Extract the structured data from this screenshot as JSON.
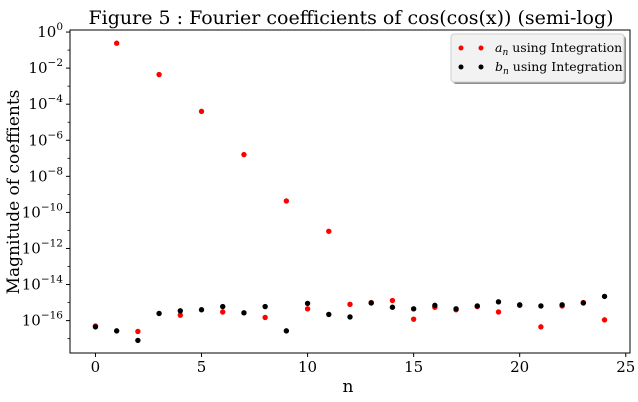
{
  "chart_data": {
    "type": "scatter",
    "title": "Figure 5 : Fourier coefficients of cos(cos(x)) (semi-log)",
    "xlabel": "n",
    "ylabel": "Magnitude of coeffients",
    "xlim": [
      -1.2,
      25.2
    ],
    "ylim": [
      1.6e-18,
      1.3
    ],
    "yscale": "log",
    "xticks": [
      0,
      5,
      10,
      15,
      20,
      25
    ],
    "yticks": [
      {
        "value": 1.0,
        "label": "10^0",
        "base": "10",
        "exp": "0"
      },
      {
        "value": 0.01,
        "label": "10^-2",
        "base": "10",
        "exp": "−2"
      },
      {
        "value": 0.0001,
        "label": "10^-4",
        "base": "10",
        "exp": "−4"
      },
      {
        "value": 1e-06,
        "label": "10^-6",
        "base": "10",
        "exp": "−6"
      },
      {
        "value": 1e-08,
        "label": "10^-8",
        "base": "10",
        "exp": "−8"
      },
      {
        "value": 1e-10,
        "label": "10^-10",
        "base": "10",
        "exp": "−10"
      },
      {
        "value": 1e-12,
        "label": "10^-12",
        "base": "10",
        "exp": "−12"
      },
      {
        "value": 1e-14,
        "label": "10^-14",
        "base": "10",
        "exp": "−14"
      },
      {
        "value": 1e-16,
        "label": "10^-16",
        "base": "10",
        "exp": "−16"
      }
    ],
    "grid": false,
    "legend_position": "top-right",
    "series": [
      {
        "name": "a_n using Integration",
        "legend_sym": "a",
        "legend_sub": "n",
        "legend_rest": " using Integration",
        "color": "#ff0000",
        "x": [
          0,
          1,
          2,
          3,
          4,
          5,
          6,
          7,
          8,
          9,
          10,
          11,
          12,
          13,
          14,
          15,
          16,
          17,
          18,
          19,
          20,
          21,
          22,
          23,
          24
        ],
        "y": [
          5e-17,
          0.24,
          2.5e-17,
          0.0044,
          2e-16,
          4e-05,
          3e-16,
          1.6e-07,
          1.5e-16,
          4.3e-10,
          4.5e-16,
          9e-12,
          8e-16,
          1e-15,
          1.3e-15,
          1.2e-16,
          5.5e-16,
          4e-16,
          6e-16,
          3e-16,
          7e-16,
          4.5e-17,
          6.5e-16,
          1e-15,
          1.1e-16
        ]
      },
      {
        "name": "b_n using Integration",
        "legend_sym": "b",
        "legend_sub": "n",
        "legend_rest": " using Integration",
        "color": "#000000",
        "x": [
          0,
          1,
          2,
          3,
          4,
          5,
          6,
          7,
          8,
          9,
          10,
          11,
          12,
          13,
          14,
          15,
          16,
          17,
          18,
          19,
          20,
          21,
          22,
          23,
          24
        ],
        "y": [
          4.5e-17,
          2.7e-17,
          8e-18,
          2.5e-16,
          3.5e-16,
          4e-16,
          6e-16,
          2.7e-16,
          6e-16,
          2.7e-17,
          9e-16,
          2.2e-16,
          1.6e-16,
          9.5e-16,
          5.5e-16,
          4.5e-16,
          7e-16,
          4.5e-16,
          6.5e-16,
          1.1e-15,
          7.5e-16,
          6.5e-16,
          7.5e-16,
          9.5e-16,
          2.2e-15
        ]
      }
    ]
  }
}
